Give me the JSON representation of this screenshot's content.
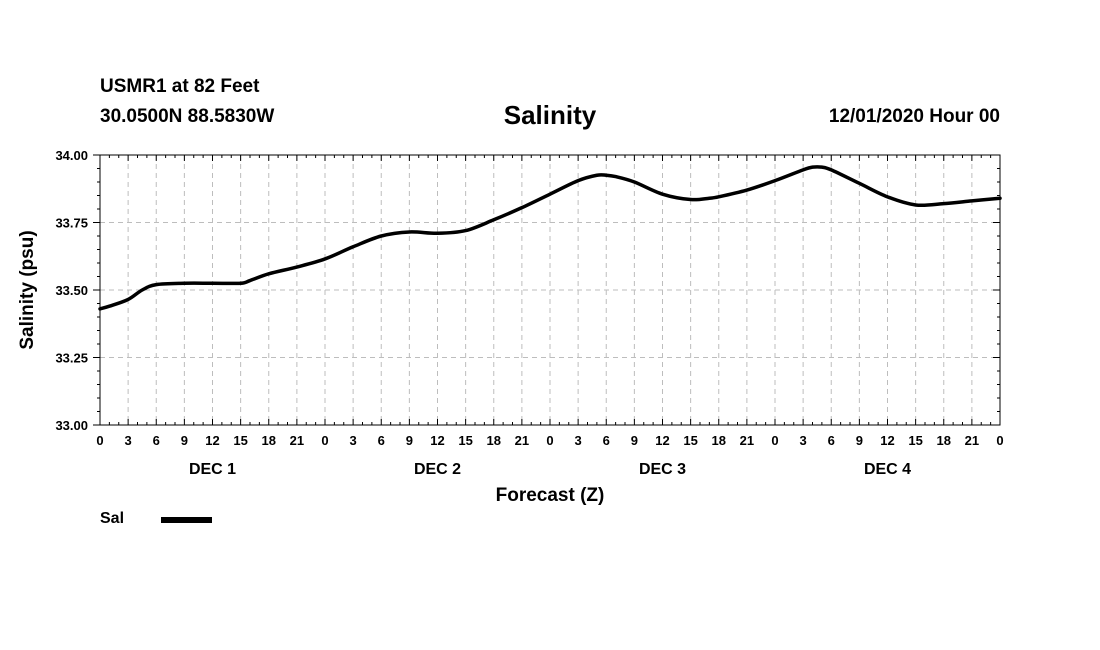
{
  "header": {
    "station": "USMR1 at 82 Feet",
    "coords": "30.0500N 88.5830W",
    "datetime": "12/01/2020 Hour 00"
  },
  "chart_data": {
    "type": "line",
    "title": "Salinity",
    "xlabel": "Forecast (Z)",
    "ylabel": "Salinity (psu)",
    "xlim": [
      0,
      96
    ],
    "ylim": [
      33.0,
      34.0
    ],
    "y_ticks": [
      "33.00",
      "33.25",
      "33.50",
      "33.75",
      "34.00"
    ],
    "x_tick_hours": [
      0,
      3,
      6,
      9,
      12,
      15,
      18,
      21,
      24,
      27,
      30,
      33,
      36,
      39,
      42,
      45,
      48,
      51,
      54,
      57,
      60,
      63,
      66,
      69,
      72,
      75,
      78,
      81,
      84,
      87,
      90,
      93,
      96
    ],
    "x_tick_labels": [
      "0",
      "3",
      "6",
      "9",
      "12",
      "15",
      "18",
      "21",
      "0",
      "3",
      "6",
      "9",
      "12",
      "15",
      "18",
      "21",
      "0",
      "3",
      "6",
      "9",
      "12",
      "15",
      "18",
      "21",
      "0",
      "3",
      "6",
      "9",
      "12",
      "15",
      "18",
      "21",
      "0"
    ],
    "day_labels": [
      {
        "label": "DEC 1",
        "hour": 12
      },
      {
        "label": "DEC 2",
        "hour": 36
      },
      {
        "label": "DEC 3",
        "hour": 60
      },
      {
        "label": "DEC 4",
        "hour": 84
      }
    ],
    "grid": true,
    "legend_position": "bottom-left",
    "series": [
      {
        "name": "Sal",
        "color": "#000000",
        "x": [
          0,
          1,
          3,
          4.5,
          6,
          9,
          12,
          15,
          16,
          18,
          21,
          24,
          27,
          30,
          33,
          36,
          39,
          42,
          45,
          48,
          51,
          53,
          54,
          55,
          57,
          60,
          63,
          65,
          66,
          69,
          72,
          75,
          76,
          77,
          78,
          81,
          84,
          87,
          90,
          93,
          96
        ],
        "y": [
          33.43,
          33.44,
          33.465,
          33.5,
          33.52,
          33.525,
          33.525,
          33.525,
          33.535,
          33.56,
          33.585,
          33.615,
          33.66,
          33.7,
          33.715,
          33.71,
          33.72,
          33.76,
          33.805,
          33.855,
          33.905,
          33.925,
          33.925,
          33.92,
          33.9,
          33.855,
          33.835,
          33.84,
          33.845,
          33.87,
          33.905,
          33.945,
          33.955,
          33.955,
          33.945,
          33.895,
          33.845,
          33.815,
          33.82,
          33.83,
          33.84
        ]
      }
    ]
  }
}
